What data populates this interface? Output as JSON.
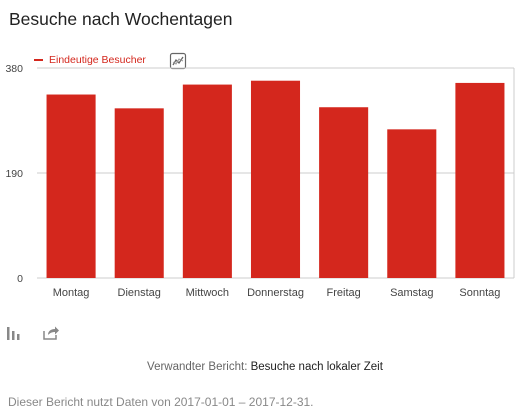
{
  "widget": {
    "title": "Besuche nach Wochentagen",
    "related_prefix": "Verwandter Bericht:",
    "related_link": "Besuche nach lokaler Zeit",
    "note": "Dieser Bericht nutzt Daten von 2017-01-01 – 2017-12-31."
  },
  "icons": {
    "evolution": "line-graph-icon",
    "visualization": "bar-chart-icon",
    "export": "export-icon"
  },
  "colors": {
    "series": "#d4271d",
    "grid": "#cccccc"
  },
  "chart_data": {
    "type": "bar",
    "title": "Besuche nach Wochentagen",
    "xlabel": "",
    "ylabel": "",
    "categories": [
      "Montag",
      "Dienstag",
      "Mittwoch",
      "Donnerstag",
      "Freitag",
      "Samstag",
      "Sonntag"
    ],
    "series": [
      {
        "name": "Eindeutige Besucher",
        "values": [
          332,
          307,
          350,
          357,
          309,
          269,
          353
        ]
      }
    ],
    "yticks": [
      "0",
      "190",
      "380"
    ],
    "ylim": [
      0,
      380
    ],
    "grid": true,
    "legend": "top-left"
  }
}
